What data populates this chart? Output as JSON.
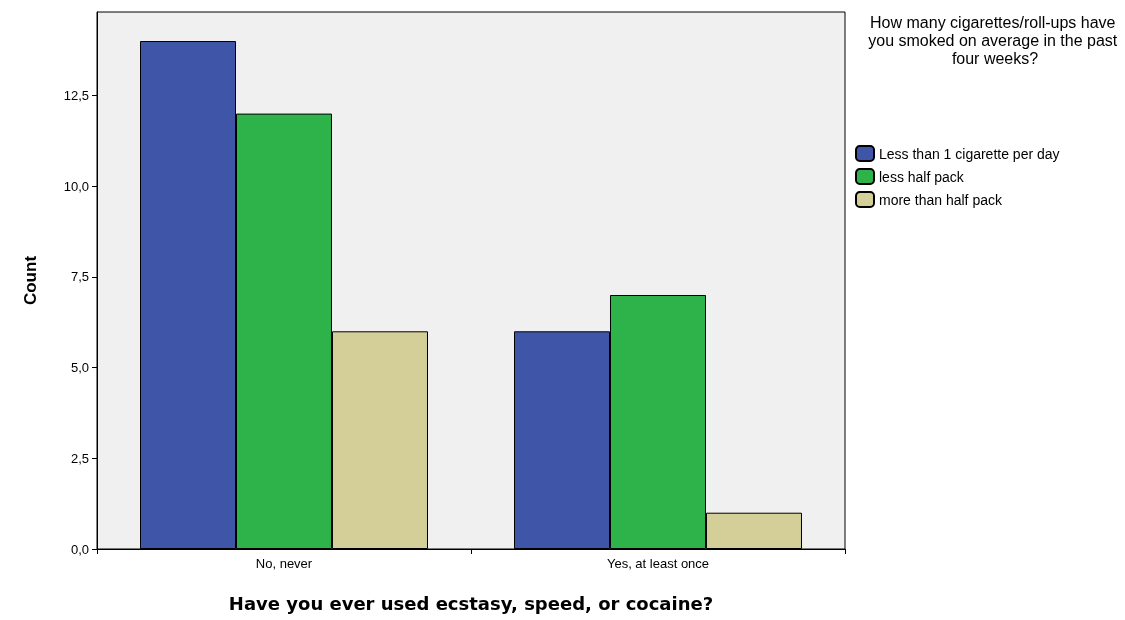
{
  "chart_data": {
    "type": "bar",
    "xlabel": "Have you ever used ecstasy, speed, or cocaine?",
    "ylabel": "Count",
    "legend_title": "How many cigarettes/roll-ups have you smoked on average in the past four weeks?",
    "categories": [
      "No, never",
      "Yes, at least once"
    ],
    "series": [
      {
        "name": "Less than 1 cigarette per day",
        "color": "#3f56a8",
        "values": [
          14,
          6
        ]
      },
      {
        "name": "less half pack",
        "color": "#2db34a",
        "values": [
          12,
          7
        ]
      },
      {
        "name": "more than half pack",
        "color": "#d4cf98",
        "values": [
          6,
          1
        ]
      }
    ],
    "ylim": [
      0,
      14.8
    ],
    "yticks": [
      {
        "value": 0,
        "label": "0,0"
      },
      {
        "value": 2.5,
        "label": "2,5"
      },
      {
        "value": 5,
        "label": "5,0"
      },
      {
        "value": 7.5,
        "label": "7,5"
      },
      {
        "value": 10,
        "label": "10,0"
      },
      {
        "value": 12.5,
        "label": "12,5"
      }
    ],
    "grid": false,
    "legend": "right"
  }
}
